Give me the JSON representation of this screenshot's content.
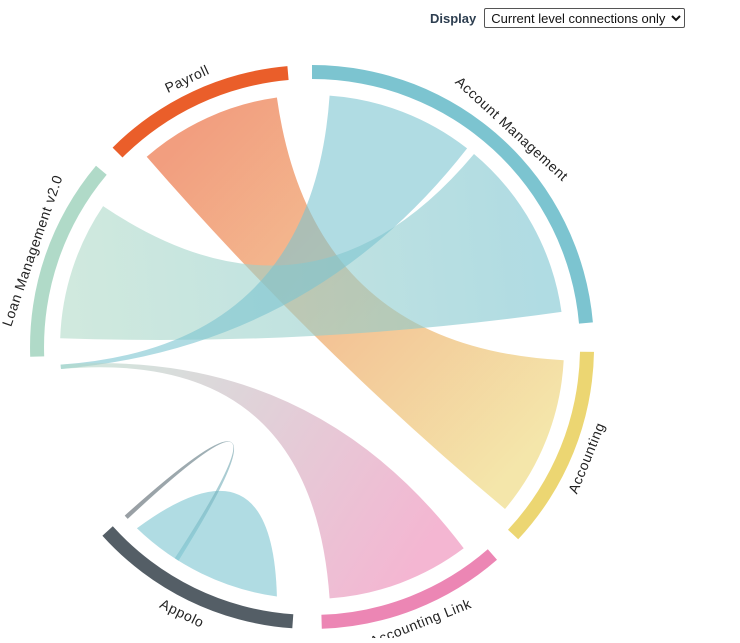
{
  "controls": {
    "display_label": "Display",
    "display_option": "Current level connections only"
  },
  "nodes": [
    {
      "label": "Account Management",
      "color": "#7cc4d0"
    },
    {
      "label": "Accounting",
      "color": "#ecd672"
    },
    {
      "label": "Accounting Link",
      "color": "#ec86b4"
    },
    {
      "label": "Appolo",
      "color": "#545e66"
    },
    {
      "label": "Loan Management v2.0",
      "color": "#b0dac8"
    },
    {
      "label": "Payroll",
      "color": "#ea5e2a"
    }
  ]
}
